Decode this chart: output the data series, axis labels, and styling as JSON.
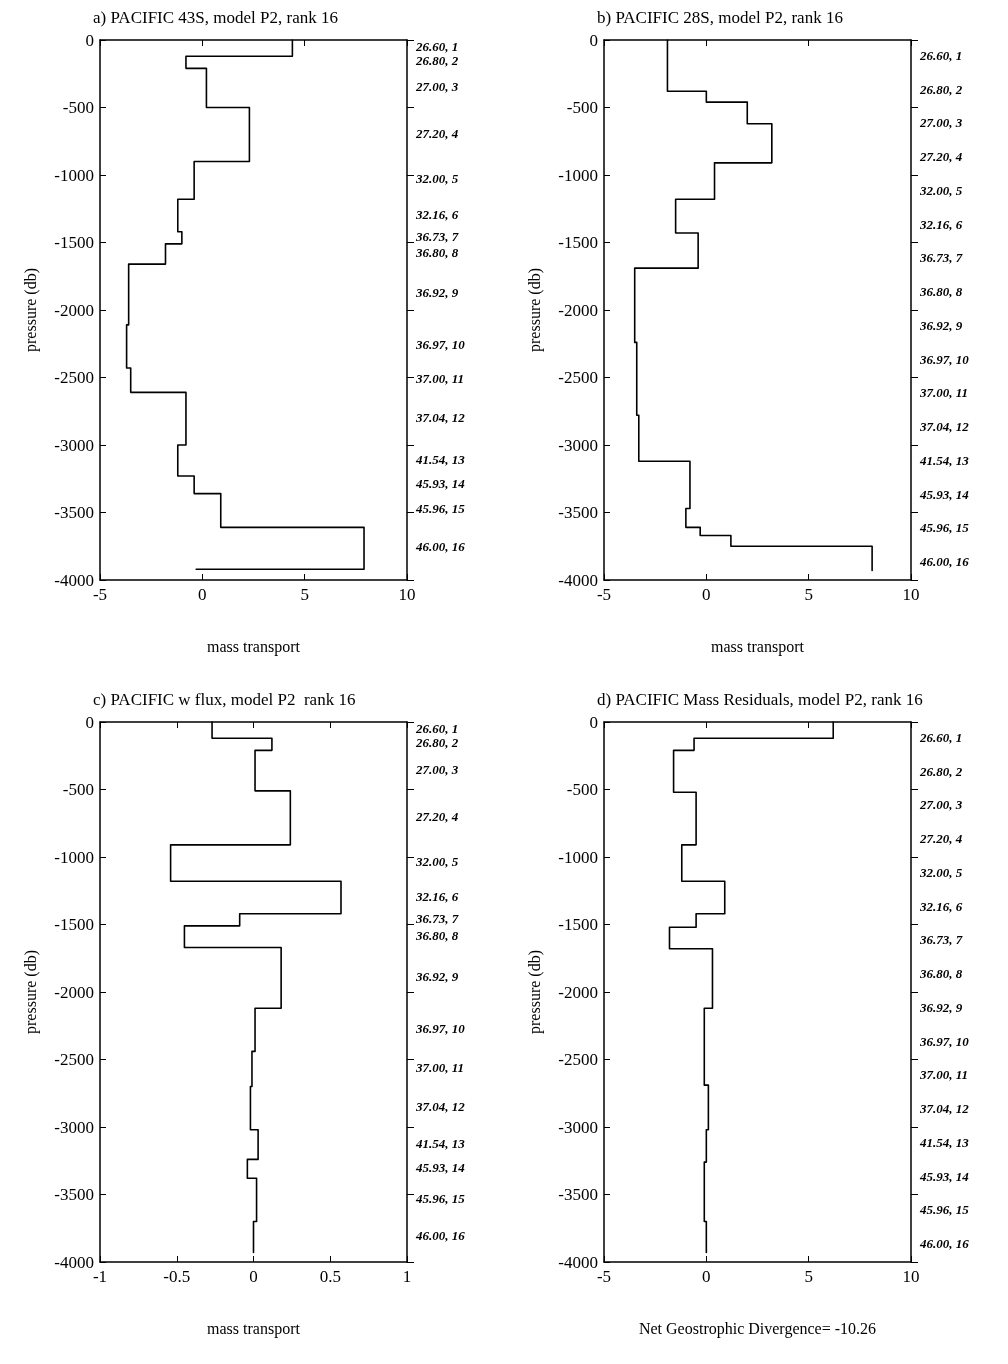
{
  "chart_data": [
    {
      "type": "line",
      "title": "a) PACIFIC 43S, model P2, rank 16",
      "xlabel": "mass transport",
      "ylabel": "pressure (db)",
      "xlim": [
        -5,
        10
      ],
      "xticks": [
        -5,
        0,
        5,
        10
      ],
      "ylim": [
        -4000,
        0
      ],
      "yticks": [
        0,
        -500,
        -1000,
        -1500,
        -2000,
        -2500,
        -3000,
        -3500,
        -4000
      ],
      "annotations": [
        "26.60, 1",
        "26.80, 2",
        "27.00, 3",
        "27.20, 4",
        "32.00, 5",
        "32.16, 6",
        "36.73, 7",
        "36.80, 8",
        "36.92, 9",
        "36.97, 10",
        "37.00, 11",
        "37.04, 12",
        "41.54, 13",
        "45.93, 14",
        "45.96, 15",
        "46.00, 16"
      ],
      "series": [
        {
          "color": "#000000",
          "x": [
            4.4,
            4.4,
            -0.8,
            -0.8,
            0.2,
            0.2,
            2.3,
            2.3,
            -0.4,
            -0.4,
            -1.2,
            -1.2,
            -1.0,
            -1.0,
            -1.8,
            -1.8,
            -3.6,
            -3.6,
            -3.7,
            -3.7,
            -3.5,
            -3.5,
            -0.8,
            -0.8,
            -1.2,
            -1.2,
            -0.4,
            -0.4,
            0.9,
            0.9,
            7.9,
            7.9,
            -0.3
          ],
          "values": [
            0,
            -120,
            -120,
            -210,
            -210,
            -500,
            -500,
            -900,
            -900,
            -1180,
            -1180,
            -1420,
            -1420,
            -1510,
            -1510,
            -1660,
            -1660,
            -2110,
            -2110,
            -2430,
            -2430,
            -2610,
            -2610,
            -3000,
            -3000,
            -3230,
            -3230,
            -3360,
            -3360,
            -3610,
            -3610,
            -3920,
            -3920
          ]
        }
      ]
    },
    {
      "type": "line",
      "title": "b) PACIFIC 28S, model P2, rank 16",
      "xlabel": "mass transport",
      "ylabel": "pressure (db)",
      "xlim": [
        -5,
        10
      ],
      "xticks": [
        -5,
        0,
        5,
        10
      ],
      "ylim": [
        -4000,
        0
      ],
      "yticks": [
        0,
        -500,
        -1000,
        -1500,
        -2000,
        -2500,
        -3000,
        -3500,
        -4000
      ],
      "annotations": [
        "26.60, 1",
        "26.80, 2",
        "27.00, 3",
        "27.20, 4",
        "32.00, 5",
        "32.16, 6",
        "36.73, 7",
        "36.80, 8",
        "36.92, 9",
        "36.97, 10",
        "37.00, 11",
        "37.04, 12",
        "41.54, 13",
        "45.93, 14",
        "45.96, 15",
        "46.00, 16"
      ],
      "series": [
        {
          "color": "#000000",
          "x": [
            -1.9,
            -1.9,
            0,
            0,
            2.0,
            2.0,
            3.2,
            3.2,
            0.4,
            0.4,
            -1.5,
            -1.5,
            -0.4,
            -0.4,
            -3.5,
            -3.5,
            -3.4,
            -3.4,
            -3.3,
            -3.3,
            -0.8,
            -0.8,
            -1.0,
            -1.0,
            -0.3,
            -0.3,
            1.2,
            1.2,
            8.1,
            8.1
          ],
          "values": [
            0,
            -380,
            -380,
            -460,
            -460,
            -620,
            -620,
            -910,
            -910,
            -1180,
            -1180,
            -1430,
            -1430,
            -1690,
            -1690,
            -2240,
            -2240,
            -2780,
            -2780,
            -3120,
            -3120,
            -3470,
            -3470,
            -3610,
            -3610,
            -3670,
            -3670,
            -3750,
            -3750,
            -3930
          ]
        }
      ]
    },
    {
      "type": "line",
      "title": "c) PACIFIC w flux, model P2  rank 16",
      "xlabel": "mass transport",
      "ylabel": "pressure (db)",
      "xlim": [
        -1,
        1
      ],
      "xticks": [
        -1,
        -0.5,
        0,
        0.5,
        1
      ],
      "ylim": [
        -4000,
        0
      ],
      "yticks": [
        0,
        -500,
        -1000,
        -1500,
        -2000,
        -2500,
        -3000,
        -3500,
        -4000
      ],
      "annotations": [
        "26.60, 1",
        "26.80, 2",
        "27.00, 3",
        "27.20, 4",
        "32.00, 5",
        "32.16, 6",
        "36.73, 7",
        "36.80, 8",
        "36.92, 9",
        "36.97, 10",
        "37.00, 11",
        "37.04, 12",
        "41.54, 13",
        "45.93, 14",
        "45.96, 15",
        "46.00, 16"
      ],
      "series": [
        {
          "color": "#000000",
          "x": [
            -0.27,
            -0.27,
            0.12,
            0.12,
            0.01,
            0.01,
            0.24,
            0.24,
            -0.54,
            -0.54,
            0.57,
            0.57,
            -0.09,
            -0.09,
            -0.45,
            -0.45,
            0.18,
            0.18,
            0.01,
            0.01,
            -0.01,
            -0.01,
            -0.02,
            -0.02,
            0.03,
            0.03,
            -0.04,
            -0.04,
            0.02,
            0.02,
            0,
            0
          ],
          "values": [
            0,
            -120,
            -120,
            -210,
            -210,
            -510,
            -510,
            -910,
            -910,
            -1180,
            -1180,
            -1420,
            -1420,
            -1510,
            -1510,
            -1670,
            -1670,
            -2120,
            -2120,
            -2440,
            -2440,
            -2700,
            -2700,
            -3020,
            -3020,
            -3240,
            -3240,
            -3380,
            -3380,
            -3700,
            -3700,
            -3930
          ]
        }
      ]
    },
    {
      "type": "line",
      "title": "d) PACIFIC Mass Residuals, model P2, rank 16",
      "xlabel": "Net Geostrophic Divergence= -10.26",
      "ylabel": "pressure (db)",
      "xlim": [
        -5,
        10
      ],
      "xticks": [
        -5,
        0,
        5,
        10
      ],
      "ylim": [
        -4000,
        0
      ],
      "yticks": [
        0,
        -500,
        -1000,
        -1500,
        -2000,
        -2500,
        -3000,
        -3500,
        -4000
      ],
      "annotations": [
        "26.60, 1",
        "26.80, 2",
        "27.00, 3",
        "27.20, 4",
        "32.00, 5",
        "32.16, 6",
        "36.73, 7",
        "36.80, 8",
        "36.92, 9",
        "36.97, 10",
        "37.00, 11",
        "37.04, 12",
        "41.54, 13",
        "45.93, 14",
        "45.96, 15",
        "46.00, 16"
      ],
      "series": [
        {
          "color": "#000000",
          "x": [
            6.2,
            6.2,
            -0.6,
            -0.6,
            -1.6,
            -1.6,
            -0.5,
            -0.5,
            -1.2,
            -1.2,
            0.9,
            0.9,
            -0.5,
            -0.5,
            -1.8,
            -1.8,
            0.3,
            0.3,
            -0.1,
            -0.1,
            0.1,
            0.1,
            0,
            0,
            -0.1,
            -0.1,
            0,
            0
          ],
          "values": [
            0,
            -120,
            -120,
            -210,
            -210,
            -520,
            -520,
            -910,
            -910,
            -1180,
            -1180,
            -1420,
            -1420,
            -1520,
            -1520,
            -1680,
            -1680,
            -2120,
            -2120,
            -2690,
            -2690,
            -3020,
            -3020,
            -3260,
            -3260,
            -3700,
            -3700,
            -3930
          ]
        }
      ]
    }
  ]
}
